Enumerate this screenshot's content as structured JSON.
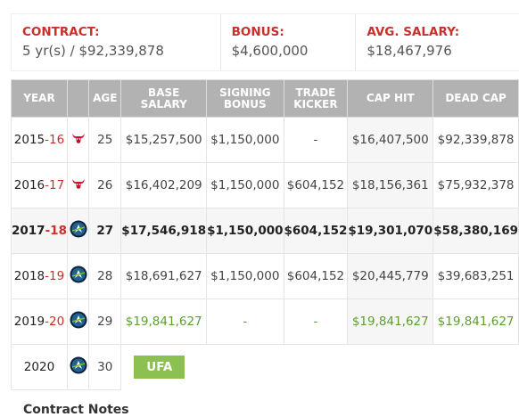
{
  "summary": [
    {
      "label": "CONTRACT:",
      "value": "5 yr(s) / $92,339,878"
    },
    {
      "label": "BONUS:",
      "value": "$4,600,000"
    },
    {
      "label": "AVG. SALARY:",
      "value": "$18,467,976"
    }
  ],
  "table": {
    "headers": [
      "YEAR",
      "AGE",
      "BASE SALARY",
      "SIGNING BONUS",
      "TRADE KICKER",
      "CAP HIT",
      "DEAD CAP"
    ],
    "rows": [
      {
        "year": {
          "start": "2015",
          "end": "-16"
        },
        "age": "25",
        "base": "$15,257,500",
        "signing": "$1,150,000",
        "trade": "-",
        "cap": "$16,407,500",
        "dead": "$92,339,878"
      },
      {
        "year": {
          "start": "2016",
          "end": "-17"
        },
        "age": "26",
        "base": "$16,402,209",
        "signing": "$1,150,000",
        "trade": "$604,152",
        "cap": "$18,156,361",
        "dead": "$75,932,378"
      },
      {
        "year": {
          "start": "2017",
          "end": "-18"
        },
        "age": "27",
        "base": "$17,546,918",
        "signing": "$1,150,000",
        "trade": "$604,152",
        "cap": "$19,301,070",
        "dead": "$58,380,169"
      },
      {
        "year": {
          "start": "2018",
          "end": "-19"
        },
        "age": "28",
        "base": "$18,691,627",
        "signing": "$1,150,000",
        "trade": "$604,152",
        "cap": "$20,445,779",
        "dead": "$39,683,251"
      },
      {
        "year": {
          "start": "2019",
          "end": "-20"
        },
        "age": "29",
        "base": "$19,841,627",
        "signing": "-",
        "trade": "-",
        "cap": "$19,841,627",
        "dead": "$19,841,627"
      },
      {
        "year": {
          "start": "2020"
        },
        "age": "30",
        "status": "UFA"
      }
    ]
  },
  "notes_title": "Contract Notes"
}
